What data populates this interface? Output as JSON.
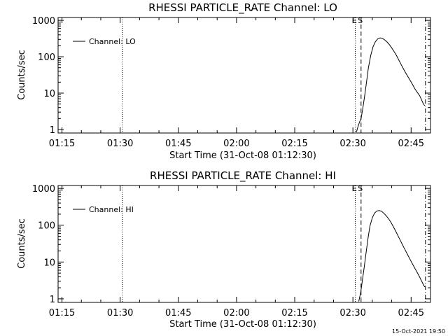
{
  "footer": {
    "timestamp": "15-Oct-2021 19:50"
  },
  "chart_data": [
    {
      "type": "line",
      "title": "RHESSI PARTICLE_RATE Channel: LO",
      "xlabel": "Start Time (31-Oct-08 01:12:30)",
      "ylabel": "Counts/sec",
      "xlim_min": [
        74,
        170
      ],
      "ylim": [
        0.8,
        1200
      ],
      "yscale": "log",
      "x_ticks": [
        {
          "label": "01:15",
          "min": 75
        },
        {
          "label": "01:30",
          "min": 90
        },
        {
          "label": "01:45",
          "min": 105
        },
        {
          "label": "02:00",
          "min": 120
        },
        {
          "label": "02:15",
          "min": 135
        },
        {
          "label": "02:30",
          "min": 150
        },
        {
          "label": "02:45",
          "min": 165
        }
      ],
      "y_ticks": [
        {
          "label": "1",
          "value": 1
        },
        {
          "label": "10",
          "value": 10
        },
        {
          "label": "100",
          "value": 100
        },
        {
          "label": "1000",
          "value": 1000
        }
      ],
      "legend": {
        "label": "Channel: LO",
        "position": "top-left"
      },
      "markers": [
        {
          "label": "",
          "min": 90.6,
          "style": "dotted"
        },
        {
          "label": "E",
          "min": 150.6,
          "style": "dotted"
        },
        {
          "label": "S",
          "min": 152.1,
          "style": "dashed"
        },
        {
          "label": "",
          "min": 168.7,
          "style": "dashdot"
        }
      ],
      "series": [
        {
          "x": [
            150.9,
            151.3,
            151.7,
            152.1,
            152.5,
            153.0,
            153.5,
            154.0,
            154.6,
            155.2,
            155.8,
            156.4,
            157.0,
            157.6,
            158.2,
            158.8,
            159.4,
            160.0,
            160.6,
            161.2,
            161.8,
            162.4,
            163.0,
            163.6,
            164.2,
            164.8,
            165.4,
            166.0,
            166.6,
            167.2,
            167.7,
            168.1,
            168.5
          ],
          "y": [
            0.85,
            1.2,
            1.6,
            2.0,
            3.5,
            8,
            20,
            50,
            110,
            190,
            260,
            310,
            330,
            320,
            290,
            255,
            215,
            175,
            140,
            110,
            82,
            62,
            47,
            36,
            28,
            22,
            17,
            13,
            10.5,
            8.5,
            6.5,
            5.2,
            4.5
          ]
        }
      ]
    },
    {
      "type": "line",
      "title": "RHESSI PARTICLE_RATE Channel: HI",
      "xlabel": "Start Time (31-Oct-08 01:12:30)",
      "ylabel": "Counts/sec",
      "xlim_min": [
        74,
        170
      ],
      "ylim": [
        0.8,
        1200
      ],
      "yscale": "log",
      "x_ticks": [
        {
          "label": "01:15",
          "min": 75
        },
        {
          "label": "01:30",
          "min": 90
        },
        {
          "label": "01:45",
          "min": 105
        },
        {
          "label": "02:00",
          "min": 120
        },
        {
          "label": "02:15",
          "min": 135
        },
        {
          "label": "02:30",
          "min": 150
        },
        {
          "label": "02:45",
          "min": 165
        }
      ],
      "y_ticks": [
        {
          "label": "1",
          "value": 1
        },
        {
          "label": "10",
          "value": 10
        },
        {
          "label": "100",
          "value": 100
        },
        {
          "label": "1000",
          "value": 1000
        }
      ],
      "legend": {
        "label": "Channel: HI",
        "position": "top-left"
      },
      "markers": [
        {
          "label": "",
          "min": 90.6,
          "style": "dotted"
        },
        {
          "label": "E",
          "min": 150.6,
          "style": "dotted"
        },
        {
          "label": "S",
          "min": 152.1,
          "style": "dashed"
        },
        {
          "label": "",
          "min": 168.7,
          "style": "dashdot"
        }
      ],
      "series": [
        {
          "x": [
            151.5,
            152.0,
            152.4,
            152.9,
            153.4,
            153.9,
            154.4,
            155.0,
            155.6,
            156.2,
            156.8,
            157.4,
            158.0,
            158.6,
            159.2,
            159.8,
            160.4,
            161.0,
            161.6,
            162.2,
            162.8,
            163.4,
            164.0,
            164.6,
            165.2,
            165.8,
            166.4,
            167.0,
            167.6,
            168.1,
            168.5
          ],
          "y": [
            0.85,
            1.5,
            3,
            7,
            18,
            45,
            95,
            160,
            215,
            245,
            250,
            238,
            210,
            180,
            150,
            120,
            92,
            70,
            52,
            39,
            29,
            22,
            16.5,
            12.5,
            9.5,
            7.3,
            5.6,
            4.3,
            3.2,
            2.5,
            2.1
          ]
        }
      ]
    }
  ]
}
